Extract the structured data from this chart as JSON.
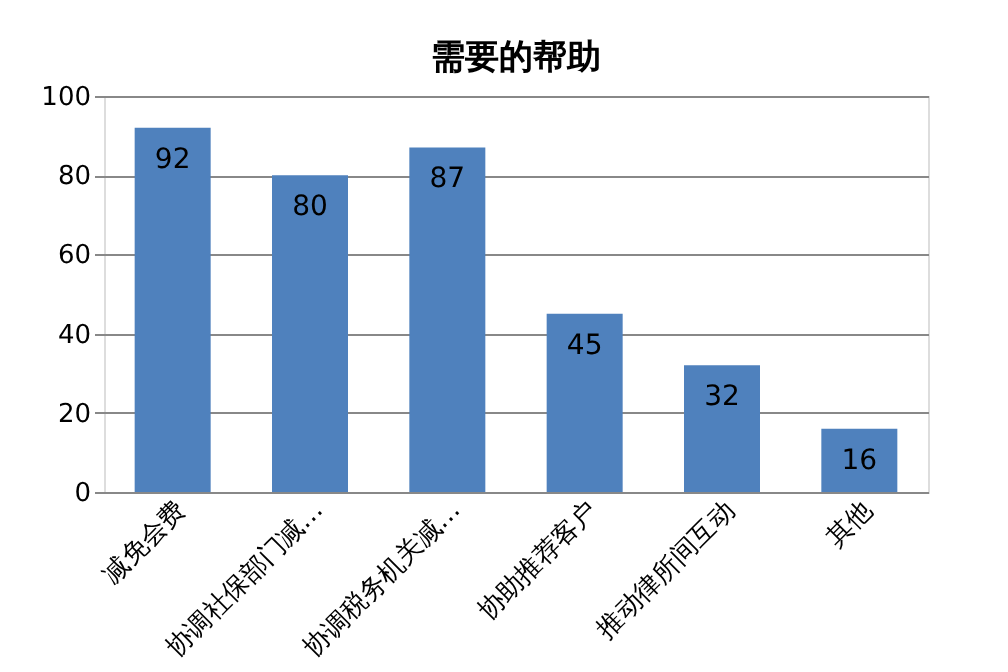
{
  "chart_data": {
    "type": "bar",
    "title": "需要的帮助",
    "categories": [
      "减免会费",
      "协调社保部门减…",
      "协调税务机关减…",
      "协助推荐客户",
      "推动律所间互动",
      "其他"
    ],
    "values": [
      92,
      80,
      87,
      45,
      32,
      16
    ],
    "color": "#4f81bd",
    "ylim": [
      0,
      100
    ],
    "yticks": [
      0,
      20,
      40,
      60,
      80,
      100
    ],
    "grid": "y",
    "data_labels": true
  }
}
